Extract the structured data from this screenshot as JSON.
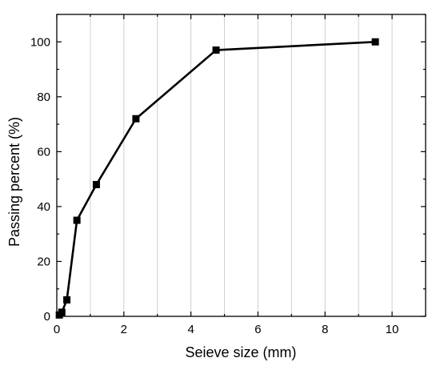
{
  "chart_data": {
    "type": "line",
    "title": "",
    "xlabel": "Seieve size (mm)",
    "ylabel": "Passing percent (%)",
    "xlim": [
      0,
      11
    ],
    "ylim": [
      0,
      110
    ],
    "x_ticks": [
      0,
      2,
      4,
      6,
      8,
      10
    ],
    "y_ticks": [
      0,
      20,
      40,
      60,
      80,
      100
    ],
    "grid": "vertical",
    "series": [
      {
        "x": [
          0.075,
          0.15,
          0.3,
          0.6,
          1.18,
          2.36,
          4.75,
          9.5
        ],
        "values": [
          0.5,
          1.5,
          6,
          35,
          48,
          72,
          97,
          100
        ],
        "color": "#000000",
        "marker": "square"
      }
    ]
  }
}
